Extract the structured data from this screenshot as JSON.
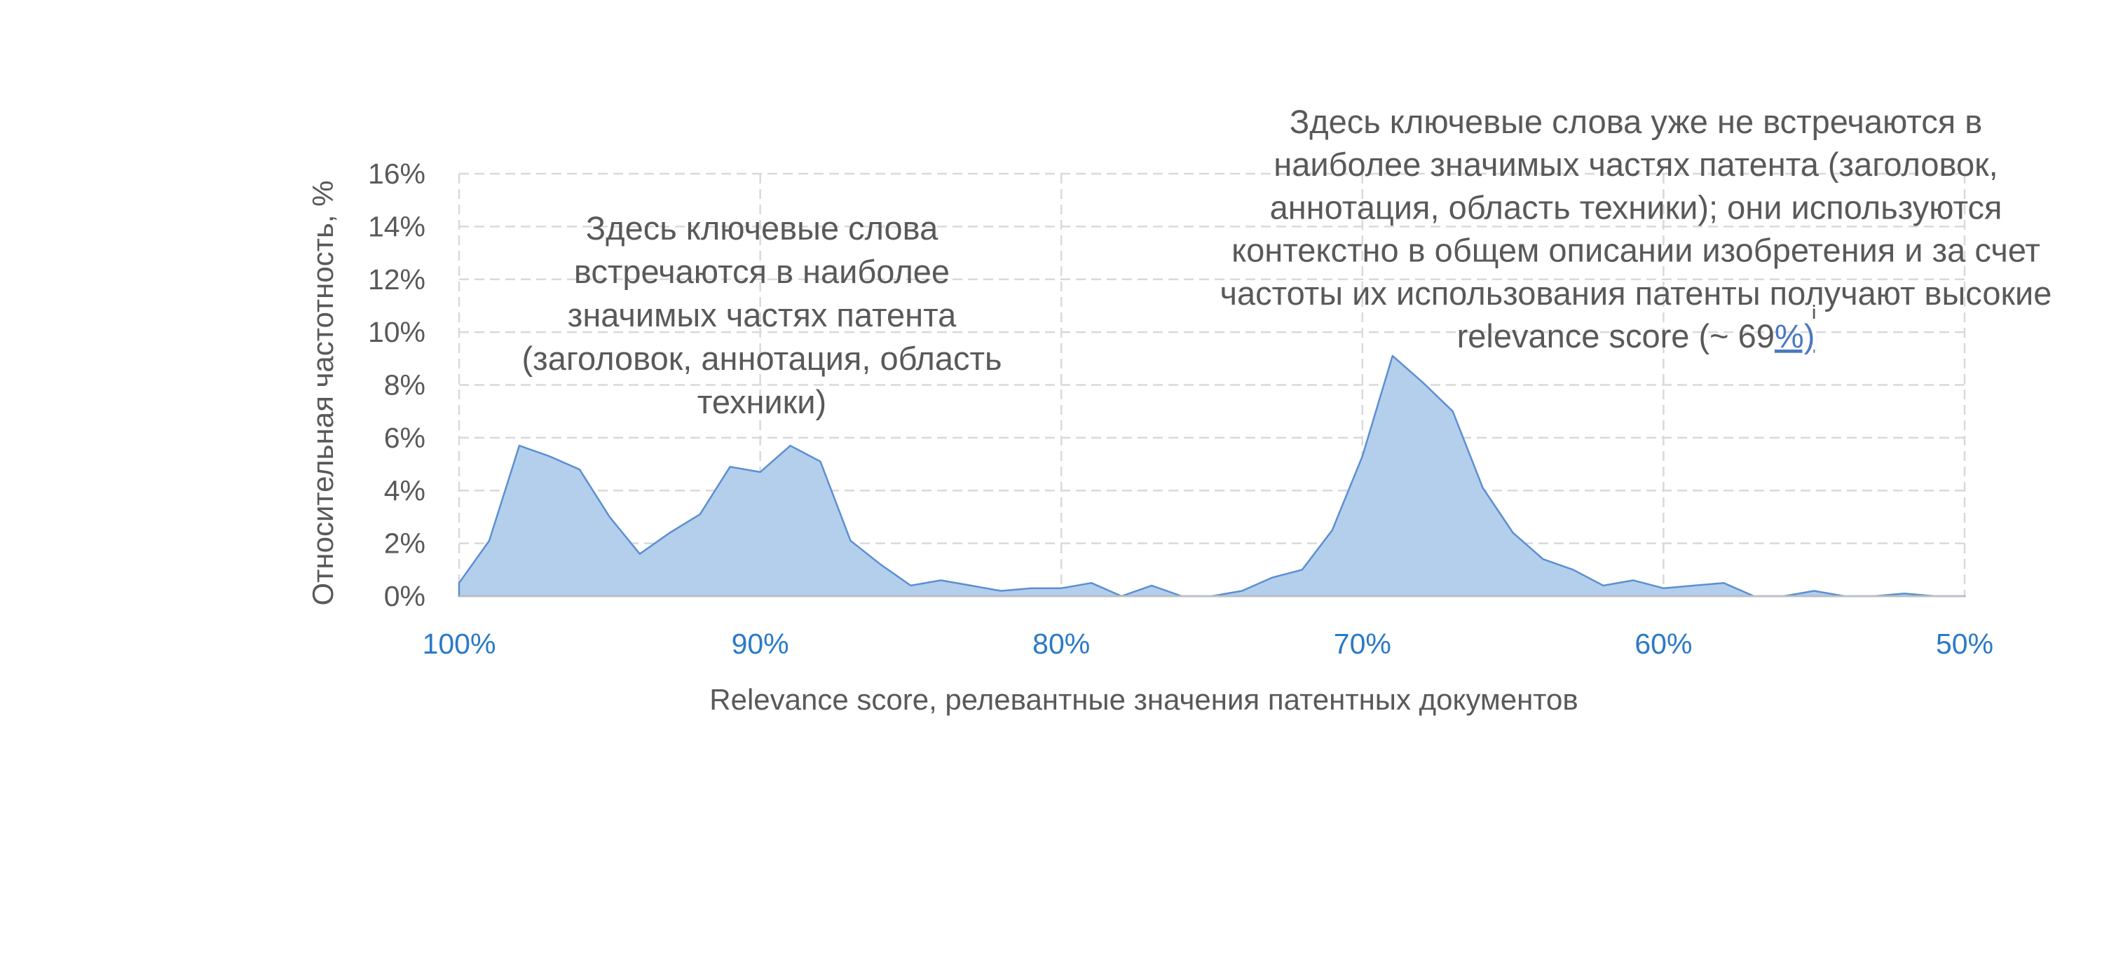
{
  "chart_data": {
    "type": "area",
    "xlabel": "Relevance score, релевантные значения патентных документов",
    "ylabel": "Относительная частотность, %",
    "x_reversed": true,
    "xlim": [
      50,
      100
    ],
    "ylim": [
      0,
      16
    ],
    "grid": true,
    "legend": "none",
    "y_ticks": [
      "0%",
      "2%",
      "4%",
      "6%",
      "8%",
      "10%",
      "12%",
      "14%",
      "16%"
    ],
    "x_ticks": [
      "100%",
      "90%",
      "80%",
      "70%",
      "60%",
      "50%"
    ],
    "x_tick_values": [
      100,
      90,
      80,
      70,
      60,
      50
    ],
    "colors": {
      "fill": "#b4cfec",
      "line": "#5b8fd2",
      "xtick": "#2a7ac6",
      "text": "#595959",
      "grid": "#d9d9d9"
    },
    "series": [
      {
        "x": [
          100,
          99,
          98,
          97,
          96,
          95,
          94,
          93,
          92,
          91,
          90,
          89,
          88,
          87,
          86,
          85,
          84,
          83,
          82,
          81,
          80,
          79,
          78,
          77,
          76,
          75,
          74,
          73,
          72,
          71,
          70,
          69,
          68,
          67,
          66,
          65,
          64,
          63,
          62,
          61,
          60,
          59,
          58,
          57,
          56,
          55,
          54,
          53,
          52,
          51,
          50
        ],
        "values": [
          0.5,
          2.1,
          5.7,
          5.3,
          4.8,
          3.0,
          1.6,
          2.4,
          3.1,
          4.9,
          4.7,
          5.7,
          5.1,
          2.1,
          1.2,
          0.4,
          0.6,
          0.4,
          0.2,
          0.3,
          0.3,
          0.5,
          0.0,
          0.4,
          0.0,
          0.0,
          0.2,
          0.7,
          1.0,
          2.5,
          5.3,
          9.1,
          8.1,
          7.0,
          4.1,
          2.4,
          1.4,
          1.0,
          0.4,
          0.6,
          0.3,
          0.4,
          0.5,
          0.0,
          0.0,
          0.2,
          0.0,
          0.0,
          0.1,
          0.0,
          0.0
        ]
      }
    ],
    "annotations": [
      {
        "lines": [
          "Здесь ключевые слова",
          "встречаются в наиболее",
          "значимых частях патента",
          "(заголовок, аннотация, область",
          "техники)"
        ]
      },
      {
        "lines": [
          "Здесь ключевые слова уже не встречаются в",
          "наиболее значимых частях патента (заголовок,",
          "аннотация, область техники); они используются",
          "контекстно в общем описании изобретения и за счет",
          "частоты их использования патенты получают высокие"
        ],
        "last_prefix": "relevance score (~ 69",
        "last_link": "%)"
      }
    ]
  }
}
